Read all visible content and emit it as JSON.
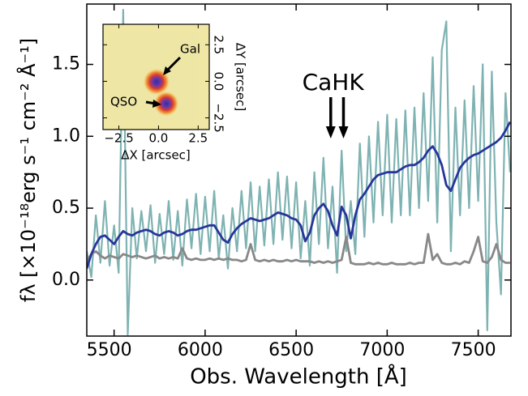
{
  "chart_data": {
    "type": "line",
    "xlabel": "Obs. Wavelength [Å]",
    "ylabel": "fλ [×10⁻¹⁸erg s⁻¹ cm⁻² Å⁻¹]",
    "x": [
      5350,
      5375,
      5400,
      5425,
      5450,
      5475,
      5500,
      5525,
      5550,
      5575,
      5600,
      5625,
      5650,
      5675,
      5700,
      5725,
      5750,
      5775,
      5800,
      5825,
      5850,
      5875,
      5900,
      5925,
      5950,
      5975,
      6000,
      6025,
      6050,
      6075,
      6100,
      6125,
      6150,
      6175,
      6200,
      6225,
      6250,
      6275,
      6300,
      6325,
      6350,
      6375,
      6400,
      6425,
      6450,
      6475,
      6500,
      6525,
      6550,
      6575,
      6600,
      6625,
      6650,
      6675,
      6700,
      6725,
      6750,
      6775,
      6800,
      6825,
      6850,
      6875,
      6900,
      6925,
      6950,
      6975,
      7000,
      7025,
      7050,
      7075,
      7100,
      7125,
      7150,
      7175,
      7200,
      7225,
      7250,
      7275,
      7300,
      7325,
      7350,
      7375,
      7400,
      7425,
      7450,
      7475,
      7500,
      7525,
      7550,
      7575,
      7600,
      7625,
      7650,
      7675
    ],
    "series": [
      {
        "color": "#7fb2b2",
        "values": [
          0.2,
          0.02,
          0.45,
          0.12,
          0.55,
          0.1,
          0.38,
          0.05,
          1.88,
          -0.38,
          0.5,
          0.15,
          0.48,
          0.2,
          0.52,
          0.12,
          0.46,
          0.18,
          0.55,
          0.14,
          0.48,
          0.1,
          0.56,
          0.22,
          0.6,
          0.18,
          0.58,
          0.2,
          0.62,
          0.15,
          0.45,
          0.08,
          0.5,
          0.2,
          0.62,
          0.22,
          0.68,
          0.2,
          0.65,
          0.24,
          0.7,
          0.25,
          0.75,
          0.28,
          0.72,
          0.22,
          0.68,
          0.15,
          0.55,
          0.1,
          0.75,
          0.25,
          0.85,
          0.22,
          0.65,
          0.05,
          0.9,
          0.2,
          0.55,
          0.18,
          0.95,
          0.3,
          1.0,
          0.4,
          1.1,
          0.45,
          1.15,
          0.4,
          1.12,
          0.45,
          1.18,
          0.45,
          1.2,
          0.5,
          1.3,
          0.55,
          1.55,
          0.4,
          1.6,
          1.8,
          0.2,
          1.2,
          0.45,
          1.25,
          0.5,
          1.35,
          0.55,
          1.5,
          -0.35,
          1.45,
          0.4,
          -0.1,
          1.3,
          0.75
        ]
      },
      {
        "color": "#888888",
        "values": [
          0.13,
          0.18,
          0.2,
          0.17,
          0.15,
          0.17,
          0.16,
          0.15,
          0.18,
          0.17,
          0.16,
          0.17,
          0.16,
          0.15,
          0.16,
          0.17,
          0.15,
          0.16,
          0.15,
          0.16,
          0.15,
          0.22,
          0.15,
          0.14,
          0.15,
          0.14,
          0.14,
          0.15,
          0.14,
          0.15,
          0.14,
          0.15,
          0.14,
          0.14,
          0.13,
          0.14,
          0.25,
          0.14,
          0.13,
          0.14,
          0.13,
          0.14,
          0.13,
          0.13,
          0.14,
          0.13,
          0.14,
          0.13,
          0.13,
          0.13,
          0.12,
          0.13,
          0.12,
          0.13,
          0.12,
          0.13,
          0.14,
          0.3,
          0.12,
          0.11,
          0.11,
          0.11,
          0.12,
          0.11,
          0.12,
          0.11,
          0.11,
          0.12,
          0.11,
          0.11,
          0.11,
          0.12,
          0.11,
          0.12,
          0.12,
          0.32,
          0.14,
          0.18,
          0.12,
          0.11,
          0.11,
          0.12,
          0.11,
          0.13,
          0.12,
          0.2,
          0.3,
          0.13,
          0.12,
          0.16,
          0.25,
          0.14,
          0.12,
          0.12
        ]
      },
      {
        "color": "#26369a",
        "values": [
          0.08,
          0.18,
          0.25,
          0.3,
          0.31,
          0.28,
          0.25,
          0.3,
          0.34,
          0.32,
          0.31,
          0.33,
          0.34,
          0.35,
          0.34,
          0.32,
          0.31,
          0.33,
          0.34,
          0.33,
          0.31,
          0.32,
          0.34,
          0.35,
          0.35,
          0.36,
          0.37,
          0.38,
          0.38,
          0.33,
          0.28,
          0.26,
          0.32,
          0.36,
          0.39,
          0.41,
          0.43,
          0.42,
          0.41,
          0.42,
          0.43,
          0.45,
          0.47,
          0.46,
          0.45,
          0.43,
          0.42,
          0.38,
          0.27,
          0.33,
          0.45,
          0.5,
          0.53,
          0.48,
          0.38,
          0.31,
          0.51,
          0.45,
          0.29,
          0.45,
          0.56,
          0.6,
          0.65,
          0.7,
          0.73,
          0.74,
          0.75,
          0.75,
          0.75,
          0.77,
          0.79,
          0.8,
          0.8,
          0.82,
          0.85,
          0.9,
          0.93,
          0.88,
          0.8,
          0.66,
          0.62,
          0.7,
          0.78,
          0.82,
          0.85,
          0.87,
          0.88,
          0.9,
          0.92,
          0.94,
          0.96,
          0.99,
          1.04,
          1.1
        ]
      }
    ],
    "xlim": [
      5350,
      7680
    ],
    "ylim": [
      -0.39,
      1.92
    ],
    "xticks": [
      5500,
      6000,
      6500,
      7000,
      7500
    ],
    "yticks": [
      {
        "value": 0,
        "label": "0.0"
      },
      0.5,
      {
        "value": 1,
        "label": "1.0"
      },
      1.5
    ],
    "annotation": {
      "text": "CaHK",
      "x": [
        6690,
        6760
      ]
    },
    "inset": {
      "xlabel": "ΔX [arcsec]",
      "ylabel": "ΔY [arcsec]",
      "xlim": [
        -3.5,
        3.2
      ],
      "ylim": [
        -3.3,
        3.9
      ],
      "xticks": [
        {
          "value": -2.5,
          "label": "−2.5"
        },
        {
          "value": 0,
          "label": "0.0"
        },
        2.5
      ],
      "yticks": [
        {
          "value": -2.5,
          "label": "−2.5"
        },
        {
          "value": 0,
          "label": "0.0"
        },
        2.5
      ],
      "labels": [
        "Gal",
        "QSO"
      ]
    }
  }
}
